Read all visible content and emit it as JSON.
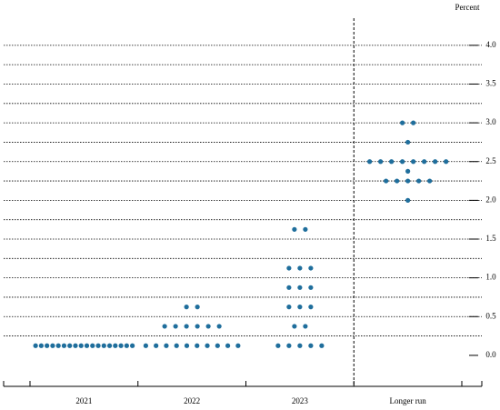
{
  "chart_data": {
    "type": "dot",
    "y_label": "Percent",
    "categories": [
      "2021",
      "2022",
      "2023",
      "Longer run"
    ],
    "separator_before": "Longer run",
    "color": "#1f6e9c",
    "ylim": [
      -0.4,
      4.35
    ],
    "yticks": [
      {
        "value": 0,
        "label": "0.0"
      },
      {
        "value": 0.5,
        "label": "0.5"
      },
      {
        "value": 1,
        "label": "1.0"
      },
      {
        "value": 1.5,
        "label": "1.5"
      },
      {
        "value": 2,
        "label": "2.0"
      },
      {
        "value": 2.5,
        "label": "2.5"
      },
      {
        "value": 3,
        "label": "3.0"
      },
      {
        "value": 3.5,
        "label": "3.5"
      },
      {
        "value": 4,
        "label": "4.0"
      }
    ],
    "gridlines": [
      0.25,
      0.5,
      0.75,
      1,
      1.25,
      1.5,
      1.75,
      2,
      2.25,
      2.5,
      2.75,
      3,
      3.25,
      3.5,
      3.75,
      4
    ],
    "dots": [
      [
        {
          "value": 0.125,
          "count": 18
        }
      ],
      [
        {
          "value": 0.125,
          "count": 10
        },
        {
          "value": 0.375,
          "count": 6
        },
        {
          "value": 0.625,
          "count": 2
        }
      ],
      [
        {
          "value": 0.125,
          "count": 5
        },
        {
          "value": 0.375,
          "count": 2
        },
        {
          "value": 0.625,
          "count": 3
        },
        {
          "value": 0.875,
          "count": 3
        },
        {
          "value": 1.125,
          "count": 3
        },
        {
          "value": 1.625,
          "count": 2
        }
      ],
      [
        {
          "value": 2,
          "count": 1
        },
        {
          "value": 2.25,
          "count": 5
        },
        {
          "value": 2.375,
          "count": 1
        },
        {
          "value": 2.5,
          "count": 8
        },
        {
          "value": 2.75,
          "count": 1
        },
        {
          "value": 3,
          "count": 2
        }
      ]
    ]
  }
}
